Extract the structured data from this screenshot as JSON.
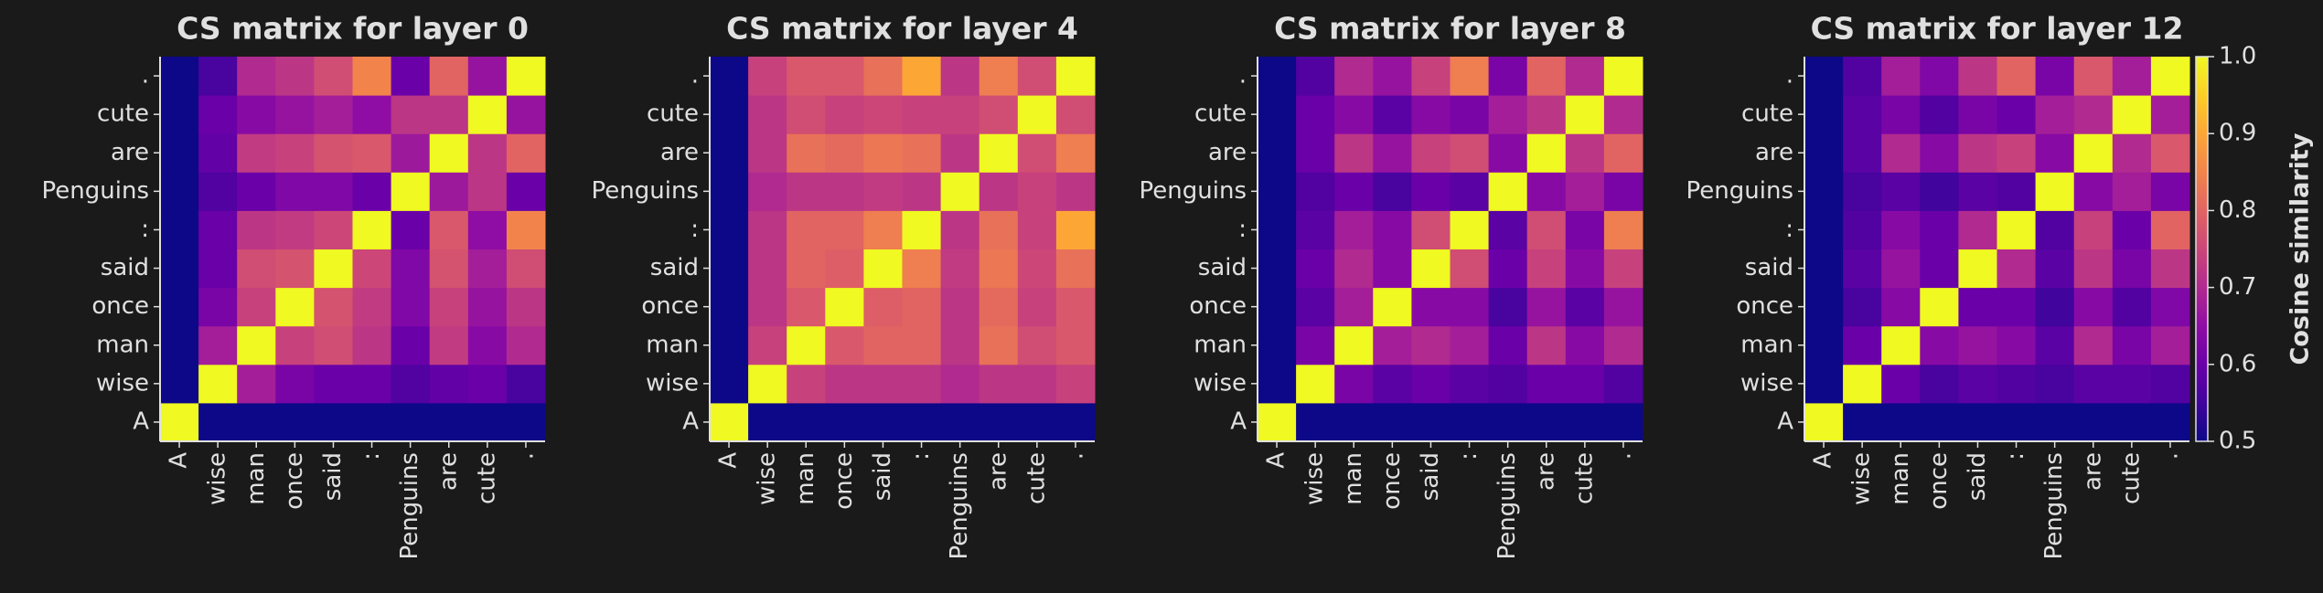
{
  "chart_data": [
    {
      "type": "heatmap",
      "title": "CS matrix for layer 0",
      "colormap": "plasma",
      "zlim": [
        0.5,
        1
      ],
      "x_categories": [
        "A",
        "wise",
        "man",
        "once",
        "said",
        ":",
        "Penguins",
        "are",
        "cute",
        "."
      ],
      "y_categories": [
        "A",
        "wise",
        "man",
        "once",
        "said",
        ":",
        "Penguins",
        "are",
        "cute",
        "."
      ],
      "values": [
        [
          1,
          0.5,
          0.5,
          0.5,
          0.5,
          0.5,
          0.5,
          0.5,
          0.5,
          0.5
        ],
        [
          0.5,
          1,
          0.68,
          0.62,
          0.6,
          0.6,
          0.57,
          0.59,
          0.6,
          0.56
        ],
        [
          0.5,
          0.68,
          1,
          0.74,
          0.76,
          0.72,
          0.6,
          0.73,
          0.64,
          0.7
        ],
        [
          0.5,
          0.62,
          0.74,
          1,
          0.77,
          0.73,
          0.63,
          0.74,
          0.66,
          0.72
        ],
        [
          0.5,
          0.6,
          0.76,
          0.77,
          1,
          0.75,
          0.63,
          0.77,
          0.68,
          0.76
        ],
        [
          0.5,
          0.6,
          0.72,
          0.73,
          0.75,
          1,
          0.6,
          0.78,
          0.65,
          0.85
        ],
        [
          0.5,
          0.57,
          0.6,
          0.63,
          0.63,
          0.6,
          1,
          0.67,
          0.72,
          0.6
        ],
        [
          0.5,
          0.59,
          0.73,
          0.74,
          0.77,
          0.78,
          0.67,
          1,
          0.72,
          0.8
        ],
        [
          0.5,
          0.6,
          0.64,
          0.66,
          0.68,
          0.65,
          0.72,
          0.72,
          1,
          0.66
        ],
        [
          0.5,
          0.56,
          0.7,
          0.72,
          0.76,
          0.85,
          0.6,
          0.8,
          0.66,
          1
        ]
      ]
    },
    {
      "type": "heatmap",
      "title": "CS matrix for layer 4",
      "colormap": "plasma",
      "zlim": [
        0.5,
        1
      ],
      "x_categories": [
        "A",
        "wise",
        "man",
        "once",
        "said",
        ":",
        "Penguins",
        "are",
        "cute",
        "."
      ],
      "y_categories": [
        "A",
        "wise",
        "man",
        "once",
        "said",
        ":",
        "Penguins",
        "are",
        "cute",
        "."
      ],
      "values": [
        [
          1,
          0.5,
          0.5,
          0.5,
          0.5,
          0.5,
          0.5,
          0.5,
          0.5,
          0.5
        ],
        [
          0.5,
          1,
          0.74,
          0.72,
          0.72,
          0.72,
          0.7,
          0.72,
          0.72,
          0.74
        ],
        [
          0.5,
          0.74,
          1,
          0.78,
          0.8,
          0.8,
          0.72,
          0.82,
          0.76,
          0.78
        ],
        [
          0.5,
          0.72,
          0.78,
          1,
          0.79,
          0.8,
          0.72,
          0.81,
          0.74,
          0.78
        ],
        [
          0.5,
          0.72,
          0.8,
          0.79,
          1,
          0.84,
          0.73,
          0.83,
          0.75,
          0.82
        ],
        [
          0.5,
          0.72,
          0.8,
          0.8,
          0.84,
          1,
          0.72,
          0.82,
          0.74,
          0.9
        ],
        [
          0.5,
          0.7,
          0.72,
          0.72,
          0.73,
          0.72,
          1,
          0.72,
          0.74,
          0.72
        ],
        [
          0.5,
          0.72,
          0.82,
          0.81,
          0.83,
          0.82,
          0.72,
          1,
          0.76,
          0.84
        ],
        [
          0.5,
          0.72,
          0.76,
          0.74,
          0.75,
          0.74,
          0.74,
          0.76,
          1,
          0.76
        ],
        [
          0.5,
          0.74,
          0.78,
          0.78,
          0.82,
          0.9,
          0.72,
          0.84,
          0.76,
          1
        ]
      ]
    },
    {
      "type": "heatmap",
      "title": "CS matrix for layer 8",
      "colormap": "plasma",
      "zlim": [
        0.5,
        1
      ],
      "x_categories": [
        "A",
        "wise",
        "man",
        "once",
        "said",
        ":",
        "Penguins",
        "are",
        "cute",
        "."
      ],
      "y_categories": [
        "A",
        "wise",
        "man",
        "once",
        "said",
        ":",
        "Penguins",
        "are",
        "cute",
        "."
      ],
      "values": [
        [
          1,
          0.5,
          0.5,
          0.5,
          0.5,
          0.5,
          0.5,
          0.5,
          0.5,
          0.5
        ],
        [
          0.5,
          1,
          0.62,
          0.58,
          0.6,
          0.58,
          0.57,
          0.6,
          0.6,
          0.57
        ],
        [
          0.5,
          0.62,
          1,
          0.68,
          0.7,
          0.68,
          0.6,
          0.72,
          0.64,
          0.7
        ],
        [
          0.5,
          0.58,
          0.68,
          1,
          0.64,
          0.64,
          0.56,
          0.66,
          0.58,
          0.66
        ],
        [
          0.5,
          0.6,
          0.7,
          0.64,
          1,
          0.76,
          0.6,
          0.74,
          0.64,
          0.74
        ],
        [
          0.5,
          0.58,
          0.68,
          0.64,
          0.76,
          1,
          0.58,
          0.76,
          0.62,
          0.84
        ],
        [
          0.5,
          0.57,
          0.6,
          0.56,
          0.6,
          0.58,
          1,
          0.64,
          0.68,
          0.62
        ],
        [
          0.5,
          0.6,
          0.72,
          0.66,
          0.74,
          0.76,
          0.64,
          1,
          0.72,
          0.8
        ],
        [
          0.5,
          0.6,
          0.64,
          0.58,
          0.64,
          0.62,
          0.68,
          0.72,
          1,
          0.7
        ],
        [
          0.5,
          0.57,
          0.7,
          0.66,
          0.74,
          0.84,
          0.62,
          0.8,
          0.7,
          1
        ]
      ]
    },
    {
      "type": "heatmap",
      "title": "CS matrix for layer 12",
      "colormap": "plasma",
      "zlim": [
        0.5,
        1
      ],
      "zticks": [
        0.5,
        0.6,
        0.7,
        0.8,
        0.9,
        {
          "value": 1,
          "label": "1.0"
        }
      ],
      "zlabel": "Cosine similarity",
      "x_categories": [
        "A",
        "wise",
        "man",
        "once",
        "said",
        ":",
        "Penguins",
        "are",
        "cute",
        "."
      ],
      "y_categories": [
        "A",
        "wise",
        "man",
        "once",
        "said",
        ":",
        "Penguins",
        "are",
        "cute",
        "."
      ],
      "values": [
        [
          1,
          0.5,
          0.5,
          0.5,
          0.5,
          0.5,
          0.5,
          0.5,
          0.5,
          0.5
        ],
        [
          0.5,
          1,
          0.6,
          0.56,
          0.58,
          0.57,
          0.56,
          0.58,
          0.58,
          0.57
        ],
        [
          0.5,
          0.6,
          1,
          0.64,
          0.66,
          0.64,
          0.58,
          0.7,
          0.62,
          0.68
        ],
        [
          0.5,
          0.56,
          0.64,
          1,
          0.6,
          0.6,
          0.55,
          0.64,
          0.57,
          0.63
        ],
        [
          0.5,
          0.58,
          0.66,
          0.6,
          1,
          0.7,
          0.58,
          0.72,
          0.62,
          0.72
        ],
        [
          0.5,
          0.57,
          0.64,
          0.6,
          0.7,
          1,
          0.57,
          0.74,
          0.6,
          0.8
        ],
        [
          0.5,
          0.56,
          0.58,
          0.55,
          0.58,
          0.57,
          1,
          0.64,
          0.68,
          0.62
        ],
        [
          0.5,
          0.58,
          0.7,
          0.64,
          0.72,
          0.74,
          0.64,
          1,
          0.7,
          0.78
        ],
        [
          0.5,
          0.58,
          0.62,
          0.57,
          0.62,
          0.6,
          0.68,
          0.7,
          1,
          0.68
        ],
        [
          0.5,
          0.57,
          0.68,
          0.63,
          0.72,
          0.8,
          0.62,
          0.78,
          0.68,
          1
        ]
      ]
    }
  ]
}
